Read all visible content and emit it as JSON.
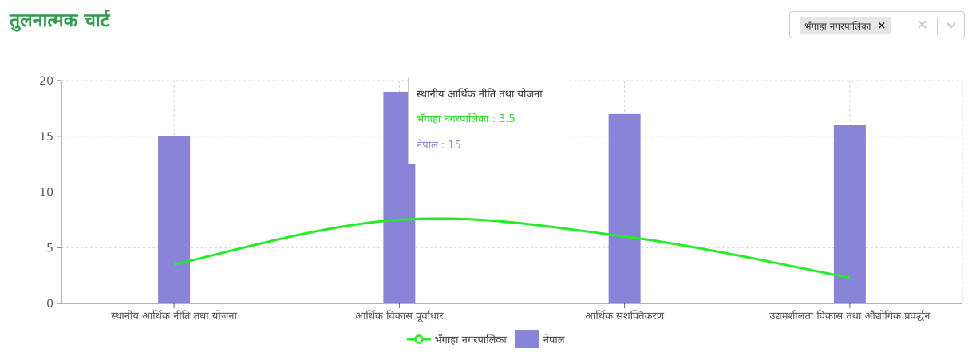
{
  "page": {
    "title": "तुलनात्मक चार्ट"
  },
  "filter": {
    "selected_chip": "भँगाहा नगरपालिका",
    "chip_remove": "×",
    "clear": "×"
  },
  "tooltip": {
    "title": "स्थानीय आर्थिक नीति तथा योजना",
    "row1": "भँगाहा नगरपालिका : 3.5",
    "row2": "नेपाल : 15"
  },
  "colors": {
    "title": "#2e9e4a",
    "line": "#22ee22",
    "bar": "#8884d8",
    "grid": "#d0d0d0",
    "axis": "#666666"
  },
  "chart_data": {
    "type": "bar",
    "categories": [
      "स्थानीय आर्थिक नीति तथा योजना",
      "आर्थिक विकास पूर्वाधार",
      "आर्थिक सशक्तिकरण",
      "उद्यमशीलता विकास तथा औद्योगिक प्रवर्द्धन"
    ],
    "series": [
      {
        "name": "भँगाहा नगरपालिका",
        "type": "line",
        "curve": "smooth",
        "values": [
          3.5,
          7.5,
          6,
          2.3
        ]
      },
      {
        "name": "नेपाल",
        "type": "bar",
        "values": [
          15,
          19,
          17,
          16
        ]
      }
    ],
    "y_ticks": [
      0,
      5,
      10,
      15,
      20
    ],
    "ylim": [
      0,
      20
    ],
    "grid": true,
    "legend_position": "bottom-center"
  }
}
